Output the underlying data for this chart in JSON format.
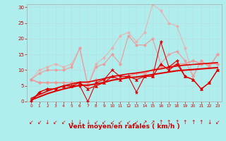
{
  "background_color": "#b0eded",
  "grid_color": "#c8e8e8",
  "xlim": [
    -0.5,
    23.5
  ],
  "ylim": [
    0,
    31
  ],
  "yticks": [
    0,
    5,
    10,
    15,
    20,
    25,
    30
  ],
  "xticks": [
    0,
    1,
    2,
    3,
    4,
    5,
    6,
    7,
    8,
    9,
    10,
    11,
    12,
    13,
    14,
    15,
    16,
    17,
    18,
    19,
    20,
    21,
    22,
    23
  ],
  "xlabel": "Vent moyen/en rafales ( km/h )",
  "lines": [
    {
      "x": [
        0,
        1,
        2,
        3,
        4,
        5,
        6,
        7,
        8,
        9,
        10,
        11,
        12,
        13,
        14,
        15,
        16,
        17,
        18,
        19,
        20,
        21,
        22,
        23
      ],
      "y": [
        0,
        3,
        4,
        4,
        5,
        5,
        5,
        0,
        6,
        7,
        10,
        8,
        8,
        3,
        8,
        8,
        19,
        11,
        13,
        8,
        7,
        4,
        6,
        10
      ],
      "color": "#dd0000",
      "linewidth": 0.8,
      "marker": "*",
      "markersize": 3.5,
      "alpha": 1.0,
      "zorder": 5
    },
    {
      "x": [
        0,
        1,
        2,
        3,
        4,
        5,
        6,
        7,
        8,
        9,
        10,
        11,
        12,
        13,
        14,
        15,
        16,
        17,
        18,
        19,
        20,
        21,
        22,
        23
      ],
      "y": [
        0,
        3,
        4,
        4,
        5,
        5,
        6,
        4,
        5,
        6,
        8,
        7,
        8,
        7,
        8,
        8,
        12,
        10,
        12,
        8,
        7,
        4,
        6,
        10
      ],
      "color": "#dd0000",
      "linewidth": 0.9,
      "marker": "^",
      "markersize": 3,
      "alpha": 1.0,
      "zorder": 5
    },
    {
      "x": [
        0,
        1,
        2,
        3,
        4,
        5,
        6,
        7,
        8,
        9,
        10,
        11,
        12,
        13,
        14,
        15,
        16,
        17,
        18,
        19,
        20,
        21,
        22,
        23
      ],
      "y": [
        0.5,
        1.5,
        2.5,
        3.3,
        4.0,
        4.6,
        5.2,
        5.2,
        5.6,
        6.1,
        6.8,
        7.2,
        7.6,
        7.8,
        8.2,
        8.6,
        9.0,
        9.4,
        9.8,
        10.0,
        10.2,
        10.4,
        10.6,
        10.8
      ],
      "color": "#dd0000",
      "linewidth": 1.5,
      "marker": null,
      "markersize": 0,
      "alpha": 1.0,
      "zorder": 4
    },
    {
      "x": [
        0,
        1,
        2,
        3,
        4,
        5,
        6,
        7,
        8,
        9,
        10,
        11,
        12,
        13,
        14,
        15,
        16,
        17,
        18,
        19,
        20,
        21,
        22,
        23
      ],
      "y": [
        1.0,
        2.2,
        3.3,
        4.2,
        5.0,
        5.6,
        6.2,
        6.2,
        6.7,
        7.3,
        8.0,
        8.4,
        8.8,
        9.1,
        9.5,
        10.0,
        10.4,
        10.9,
        11.3,
        11.6,
        11.8,
        12.0,
        12.2,
        12.4
      ],
      "color": "#dd0000",
      "linewidth": 1.2,
      "marker": null,
      "markersize": 0,
      "alpha": 1.0,
      "zorder": 4
    },
    {
      "x": [
        0,
        1,
        2,
        3,
        4,
        5,
        6,
        7,
        8,
        9,
        10,
        11,
        12,
        13,
        14,
        15,
        16,
        17,
        18,
        19,
        20,
        21,
        22,
        23
      ],
      "y": [
        7,
        6,
        6,
        6,
        6,
        6,
        6,
        6,
        7,
        7,
        8,
        8,
        8,
        9,
        9,
        10,
        11,
        11,
        12,
        12,
        13,
        12,
        12,
        12
      ],
      "color": "#ee9999",
      "linewidth": 1.2,
      "marker": "D",
      "markersize": 2.5,
      "alpha": 1.0,
      "zorder": 3
    },
    {
      "x": [
        0,
        1,
        2,
        3,
        4,
        5,
        6,
        7,
        8,
        9,
        10,
        11,
        12,
        13,
        14,
        15,
        16,
        17,
        18,
        19,
        20,
        21,
        22,
        23
      ],
      "y": [
        7,
        9,
        10,
        10,
        10,
        11,
        17,
        5,
        11,
        12,
        15,
        12,
        21,
        18,
        18,
        20,
        12,
        15,
        16,
        13,
        8,
        13,
        11,
        15
      ],
      "color": "#ee9999",
      "linewidth": 0.9,
      "marker": "o",
      "markersize": 2.5,
      "alpha": 0.9,
      "zorder": 3
    },
    {
      "x": [
        0,
        1,
        2,
        3,
        4,
        5,
        6,
        7,
        8,
        9,
        10,
        11,
        12,
        13,
        14,
        15,
        16,
        17,
        18,
        19,
        20,
        21,
        22,
        23
      ],
      "y": [
        7,
        10,
        11,
        12,
        11,
        12,
        17,
        5,
        12,
        14,
        17,
        21,
        22,
        19,
        22,
        31,
        29,
        25,
        24,
        17,
        8,
        13,
        11,
        15
      ],
      "color": "#f0aaaa",
      "linewidth": 0.8,
      "marker": "o",
      "markersize": 2.5,
      "alpha": 0.85,
      "zorder": 2
    }
  ],
  "wind_arrows": {
    "chars": [
      "↙",
      "↙",
      "↓",
      "↙",
      "↙",
      "↓",
      "↓",
      "↓",
      "↙",
      "↙",
      "↙",
      "↙",
      "↙",
      "↙",
      "↗",
      "↗",
      "↑",
      "↑",
      "↑",
      "↑",
      "↑",
      "↑",
      "↓",
      "↙"
    ],
    "fontsize": 5.5
  }
}
